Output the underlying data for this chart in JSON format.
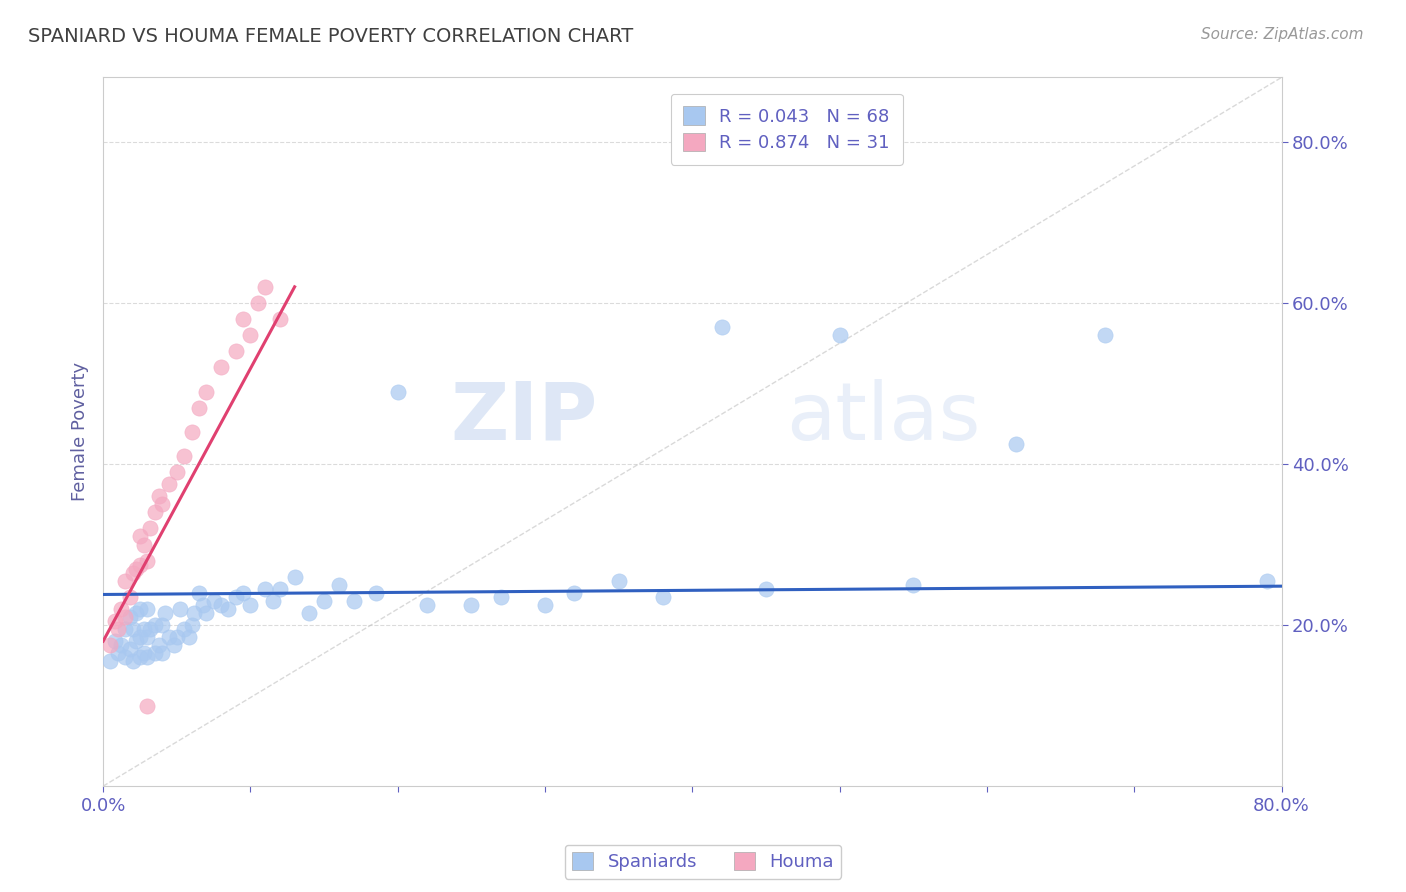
{
  "title": "SPANIARD VS HOUMA FEMALE POVERTY CORRELATION CHART",
  "source_text": "Source: ZipAtlas.com",
  "ylabel": "Female Poverty",
  "xlim": [
    0.0,
    0.8
  ],
  "ylim": [
    0.0,
    0.88
  ],
  "spaniard_color": "#a8c8f0",
  "houma_color": "#f4a8c0",
  "spaniard_line_color": "#3060c0",
  "houma_line_color": "#e04070",
  "diagonal_color": "#c0c0c0",
  "legend_R_spaniard": "0.043",
  "legend_N_spaniard": "68",
  "legend_R_houma": "0.874",
  "legend_N_houma": "31",
  "watermark_zip": "ZIP",
  "watermark_atlas": "atlas",
  "background_color": "#ffffff",
  "title_color": "#404040",
  "axis_label_color": "#6060a0",
  "tick_color": "#6060c0",
  "grid_color": "#d8d8d8",
  "spaniard_x": [
    0.005,
    0.008,
    0.01,
    0.012,
    0.015,
    0.015,
    0.018,
    0.018,
    0.02,
    0.02,
    0.022,
    0.022,
    0.025,
    0.025,
    0.025,
    0.028,
    0.028,
    0.03,
    0.03,
    0.03,
    0.032,
    0.035,
    0.035,
    0.038,
    0.04,
    0.04,
    0.042,
    0.045,
    0.048,
    0.05,
    0.052,
    0.055,
    0.058,
    0.06,
    0.062,
    0.065,
    0.068,
    0.07,
    0.075,
    0.08,
    0.085,
    0.09,
    0.095,
    0.1,
    0.11,
    0.115,
    0.12,
    0.13,
    0.14,
    0.15,
    0.16,
    0.17,
    0.185,
    0.2,
    0.22,
    0.25,
    0.27,
    0.3,
    0.32,
    0.35,
    0.38,
    0.42,
    0.45,
    0.5,
    0.55,
    0.62,
    0.68,
    0.79
  ],
  "spaniard_y": [
    0.155,
    0.18,
    0.165,
    0.175,
    0.16,
    0.195,
    0.17,
    0.21,
    0.155,
    0.195,
    0.18,
    0.215,
    0.16,
    0.185,
    0.22,
    0.165,
    0.195,
    0.16,
    0.185,
    0.22,
    0.195,
    0.165,
    0.2,
    0.175,
    0.165,
    0.2,
    0.215,
    0.185,
    0.175,
    0.185,
    0.22,
    0.195,
    0.185,
    0.2,
    0.215,
    0.24,
    0.225,
    0.215,
    0.23,
    0.225,
    0.22,
    0.235,
    0.24,
    0.225,
    0.245,
    0.23,
    0.245,
    0.26,
    0.215,
    0.23,
    0.25,
    0.23,
    0.24,
    0.49,
    0.225,
    0.225,
    0.235,
    0.225,
    0.24,
    0.255,
    0.235,
    0.57,
    0.245,
    0.56,
    0.25,
    0.425,
    0.56,
    0.255
  ],
  "houma_x": [
    0.005,
    0.008,
    0.01,
    0.012,
    0.015,
    0.015,
    0.018,
    0.02,
    0.022,
    0.025,
    0.025,
    0.028,
    0.03,
    0.032,
    0.035,
    0.038,
    0.04,
    0.045,
    0.05,
    0.055,
    0.06,
    0.065,
    0.07,
    0.08,
    0.09,
    0.095,
    0.1,
    0.105,
    0.11,
    0.12,
    0.03
  ],
  "houma_y": [
    0.175,
    0.205,
    0.195,
    0.22,
    0.21,
    0.255,
    0.235,
    0.265,
    0.27,
    0.275,
    0.31,
    0.3,
    0.28,
    0.32,
    0.34,
    0.36,
    0.35,
    0.375,
    0.39,
    0.41,
    0.44,
    0.47,
    0.49,
    0.52,
    0.54,
    0.58,
    0.56,
    0.6,
    0.62,
    0.58,
    0.1
  ]
}
